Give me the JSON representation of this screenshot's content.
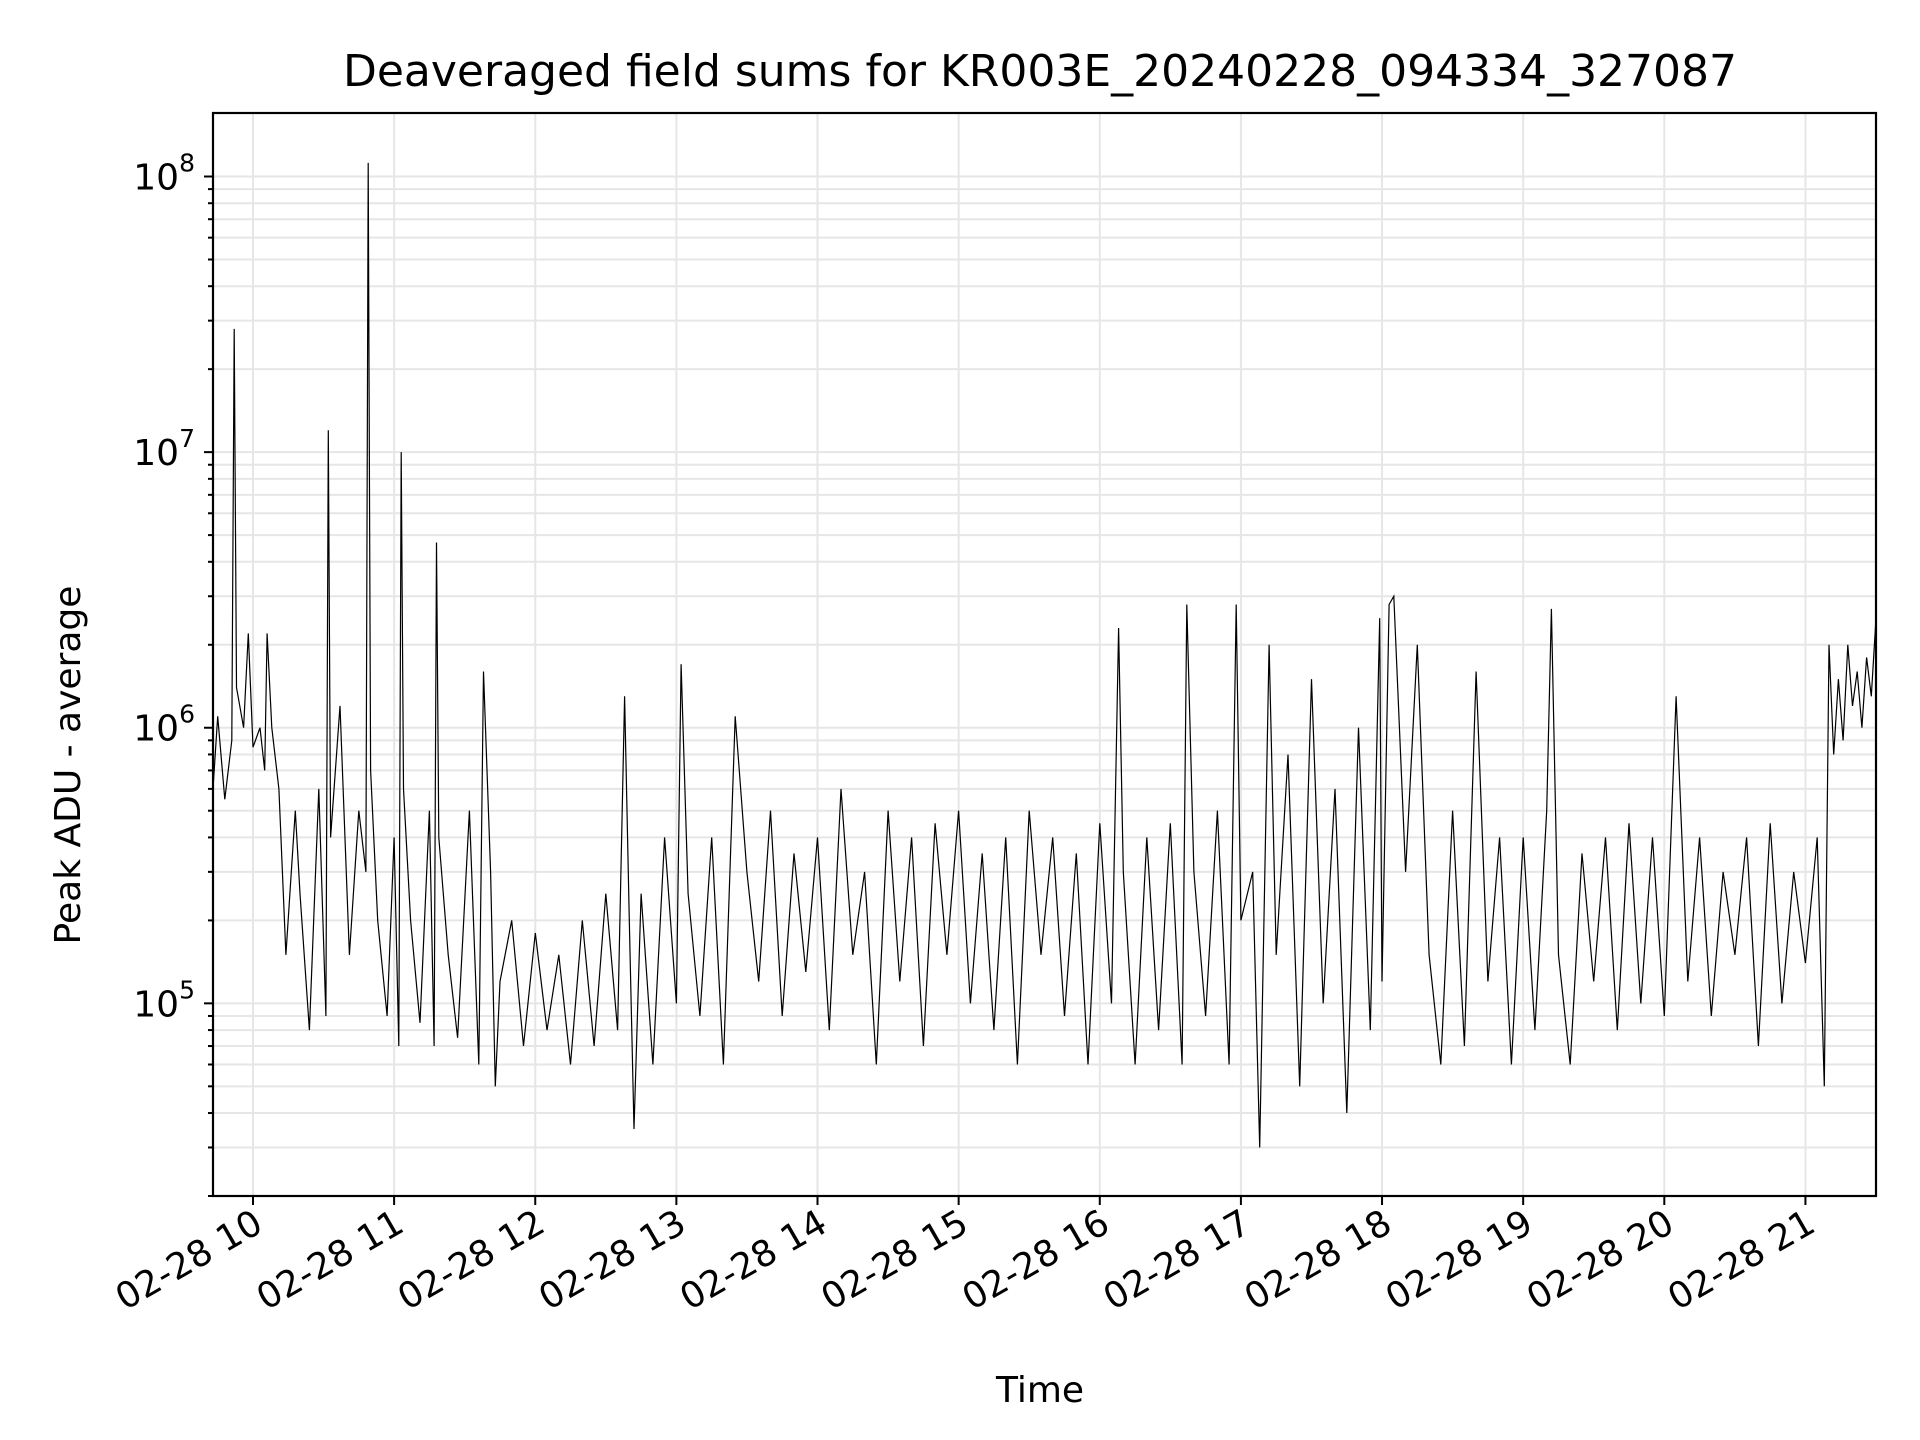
{
  "chart_data": {
    "type": "line",
    "title": "Deaveraged field sums for KR003E_20240228_094334_327087",
    "xlabel": "Time",
    "ylabel": "Peak ADU - average",
    "xlim": [
      "2024-02-28T09:43",
      "2024-02-28T21:30"
    ],
    "ylim": [
      20000,
      170000000
    ],
    "yscale": "log",
    "grid": true,
    "grid_minor": true,
    "x_tick_labels": [
      "02-28 10",
      "02-28 11",
      "02-28 12",
      "02-28 13",
      "02-28 14",
      "02-28 15",
      "02-28 16",
      "02-28 17",
      "02-28 18",
      "02-28 19",
      "02-28 20",
      "02-28 21"
    ],
    "x_ticks": [
      "2024-02-28T10:00",
      "2024-02-28T11:00",
      "2024-02-28T12:00",
      "2024-02-28T13:00",
      "2024-02-28T14:00",
      "2024-02-28T15:00",
      "2024-02-28T16:00",
      "2024-02-28T17:00",
      "2024-02-28T18:00",
      "2024-02-28T19:00",
      "2024-02-28T20:00",
      "2024-02-28T21:00"
    ],
    "y_ticks": [
      {
        "base": "10",
        "exp": "5",
        "value": 100000
      },
      {
        "base": "10",
        "exp": "6",
        "value": 1000000
      },
      {
        "base": "10",
        "exp": "7",
        "value": 10000000
      },
      {
        "base": "10",
        "exp": "8",
        "value": 100000000
      }
    ],
    "series": [
      {
        "color": "#000000",
        "x": [
          "2024-02-28T09:43",
          "2024-02-28T09:45",
          "2024-02-28T09:48",
          "2024-02-28T09:51",
          "2024-02-28T09:52",
          "2024-02-28T09:53",
          "2024-02-28T09:56",
          "2024-02-28T09:58",
          "2024-02-28T10:00",
          "2024-02-28T10:03",
          "2024-02-28T10:05",
          "2024-02-28T10:06",
          "2024-02-28T10:08",
          "2024-02-28T10:11",
          "2024-02-28T10:14",
          "2024-02-28T10:18",
          "2024-02-28T10:20",
          "2024-02-28T10:24",
          "2024-02-28T10:28",
          "2024-02-28T10:31",
          "2024-02-28T10:32",
          "2024-02-28T10:33",
          "2024-02-28T10:37",
          "2024-02-28T10:41",
          "2024-02-28T10:45",
          "2024-02-28T10:48",
          "2024-02-28T10:49",
          "2024-02-28T10:50",
          "2024-02-28T10:53",
          "2024-02-28T10:57",
          "2024-02-28T11:00",
          "2024-02-28T11:02",
          "2024-02-28T11:03",
          "2024-02-28T11:04",
          "2024-02-28T11:07",
          "2024-02-28T11:11",
          "2024-02-28T11:15",
          "2024-02-28T11:17",
          "2024-02-28T11:18",
          "2024-02-28T11:19",
          "2024-02-28T11:23",
          "2024-02-28T11:27",
          "2024-02-28T11:32",
          "2024-02-28T11:36",
          "2024-02-28T11:38",
          "2024-02-28T11:41",
          "2024-02-28T11:43",
          "2024-02-28T11:45",
          "2024-02-28T11:50",
          "2024-02-28T11:55",
          "2024-02-28T12:00",
          "2024-02-28T12:05",
          "2024-02-28T12:10",
          "2024-02-28T12:15",
          "2024-02-28T12:20",
          "2024-02-28T12:25",
          "2024-02-28T12:30",
          "2024-02-28T12:35",
          "2024-02-28T12:38",
          "2024-02-28T12:40",
          "2024-02-28T12:42",
          "2024-02-28T12:45",
          "2024-02-28T12:50",
          "2024-02-28T12:55",
          "2024-02-28T13:00",
          "2024-02-28T13:02",
          "2024-02-28T13:05",
          "2024-02-28T13:10",
          "2024-02-28T13:15",
          "2024-02-28T13:20",
          "2024-02-28T13:25",
          "2024-02-28T13:30",
          "2024-02-28T13:35",
          "2024-02-28T13:40",
          "2024-02-28T13:45",
          "2024-02-28T13:50",
          "2024-02-28T13:55",
          "2024-02-28T14:00",
          "2024-02-28T14:05",
          "2024-02-28T14:10",
          "2024-02-28T14:15",
          "2024-02-28T14:20",
          "2024-02-28T14:25",
          "2024-02-28T14:30",
          "2024-02-28T14:35",
          "2024-02-28T14:40",
          "2024-02-28T14:45",
          "2024-02-28T14:50",
          "2024-02-28T14:55",
          "2024-02-28T15:00",
          "2024-02-28T15:05",
          "2024-02-28T15:10",
          "2024-02-28T15:15",
          "2024-02-28T15:20",
          "2024-02-28T15:25",
          "2024-02-28T15:30",
          "2024-02-28T15:35",
          "2024-02-28T15:40",
          "2024-02-28T15:45",
          "2024-02-28T15:50",
          "2024-02-28T15:55",
          "2024-02-28T16:00",
          "2024-02-28T16:05",
          "2024-02-28T16:08",
          "2024-02-28T16:10",
          "2024-02-28T16:15",
          "2024-02-28T16:20",
          "2024-02-28T16:25",
          "2024-02-28T16:30",
          "2024-02-28T16:35",
          "2024-02-28T16:37",
          "2024-02-28T16:40",
          "2024-02-28T16:45",
          "2024-02-28T16:50",
          "2024-02-28T16:55",
          "2024-02-28T16:58",
          "2024-02-28T17:00",
          "2024-02-28T17:05",
          "2024-02-28T17:08",
          "2024-02-28T17:12",
          "2024-02-28T17:15",
          "2024-02-28T17:20",
          "2024-02-28T17:25",
          "2024-02-28T17:30",
          "2024-02-28T17:35",
          "2024-02-28T17:40",
          "2024-02-28T17:45",
          "2024-02-28T17:50",
          "2024-02-28T17:55",
          "2024-02-28T17:59",
          "2024-02-28T18:00",
          "2024-02-28T18:03",
          "2024-02-28T18:05",
          "2024-02-28T18:10",
          "2024-02-28T18:15",
          "2024-02-28T18:20",
          "2024-02-28T18:25",
          "2024-02-28T18:30",
          "2024-02-28T18:35",
          "2024-02-28T18:40",
          "2024-02-28T18:45",
          "2024-02-28T18:50",
          "2024-02-28T18:55",
          "2024-02-28T19:00",
          "2024-02-28T19:05",
          "2024-02-28T19:10",
          "2024-02-28T19:12",
          "2024-02-28T19:15",
          "2024-02-28T19:20",
          "2024-02-28T19:25",
          "2024-02-28T19:30",
          "2024-02-28T19:35",
          "2024-02-28T19:40",
          "2024-02-28T19:45",
          "2024-02-28T19:50",
          "2024-02-28T19:55",
          "2024-02-28T20:00",
          "2024-02-28T20:05",
          "2024-02-28T20:10",
          "2024-02-28T20:15",
          "2024-02-28T20:20",
          "2024-02-28T20:25",
          "2024-02-28T20:30",
          "2024-02-28T20:35",
          "2024-02-28T20:40",
          "2024-02-28T20:45",
          "2024-02-28T20:50",
          "2024-02-28T20:55",
          "2024-02-28T21:00",
          "2024-02-28T21:05",
          "2024-02-28T21:08",
          "2024-02-28T21:10",
          "2024-02-28T21:12",
          "2024-02-28T21:14",
          "2024-02-28T21:16",
          "2024-02-28T21:18",
          "2024-02-28T21:20",
          "2024-02-28T21:22",
          "2024-02-28T21:24",
          "2024-02-28T21:26",
          "2024-02-28T21:28",
          "2024-02-28T21:30"
        ],
        "y": [
          600000,
          1100000,
          550000,
          900000,
          28000000,
          1400000,
          1000000,
          2200000,
          850000,
          1000000,
          700000,
          2200000,
          1000000,
          600000,
          150000,
          500000,
          250000,
          80000,
          600000,
          90000,
          12000000,
          400000,
          1200000,
          150000,
          500000,
          300000,
          112000000,
          700000,
          200000,
          90000,
          400000,
          70000,
          10000000,
          600000,
          200000,
          85000,
          500000,
          70000,
          4700000,
          400000,
          150000,
          75000,
          500000,
          60000,
          1600000,
          300000,
          50000,
          120000,
          200000,
          70000,
          180000,
          80000,
          150000,
          60000,
          200000,
          70000,
          250000,
          80000,
          1300000,
          200000,
          35000,
          250000,
          60000,
          400000,
          100000,
          1700000,
          250000,
          90000,
          400000,
          60000,
          1100000,
          300000,
          120000,
          500000,
          90000,
          350000,
          130000,
          400000,
          80000,
          600000,
          150000,
          300000,
          60000,
          500000,
          120000,
          400000,
          70000,
          450000,
          150000,
          500000,
          100000,
          350000,
          80000,
          400000,
          60000,
          500000,
          150000,
          400000,
          90000,
          350000,
          60000,
          450000,
          100000,
          2300000,
          300000,
          60000,
          400000,
          80000,
          450000,
          60000,
          2800000,
          300000,
          90000,
          500000,
          60000,
          2800000,
          200000,
          300000,
          30000,
          2000000,
          150000,
          800000,
          50000,
          1500000,
          100000,
          600000,
          40000,
          1000000,
          80000,
          2500000,
          120000,
          2800000,
          3000000,
          300000,
          2000000,
          150000,
          60000,
          500000,
          70000,
          1600000,
          120000,
          400000,
          60000,
          400000,
          80000,
          500000,
          2700000,
          150000,
          60000,
          350000,
          120000,
          400000,
          80000,
          450000,
          100000,
          400000,
          90000,
          1300000,
          120000,
          400000,
          90000,
          300000,
          150000,
          400000,
          70000,
          450000,
          100000,
          300000,
          140000,
          400000,
          50000,
          2000000,
          800000,
          1500000,
          900000,
          2000000,
          1200000,
          1600000,
          1000000,
          1800000,
          1300000,
          2500000
        ]
      }
    ]
  }
}
